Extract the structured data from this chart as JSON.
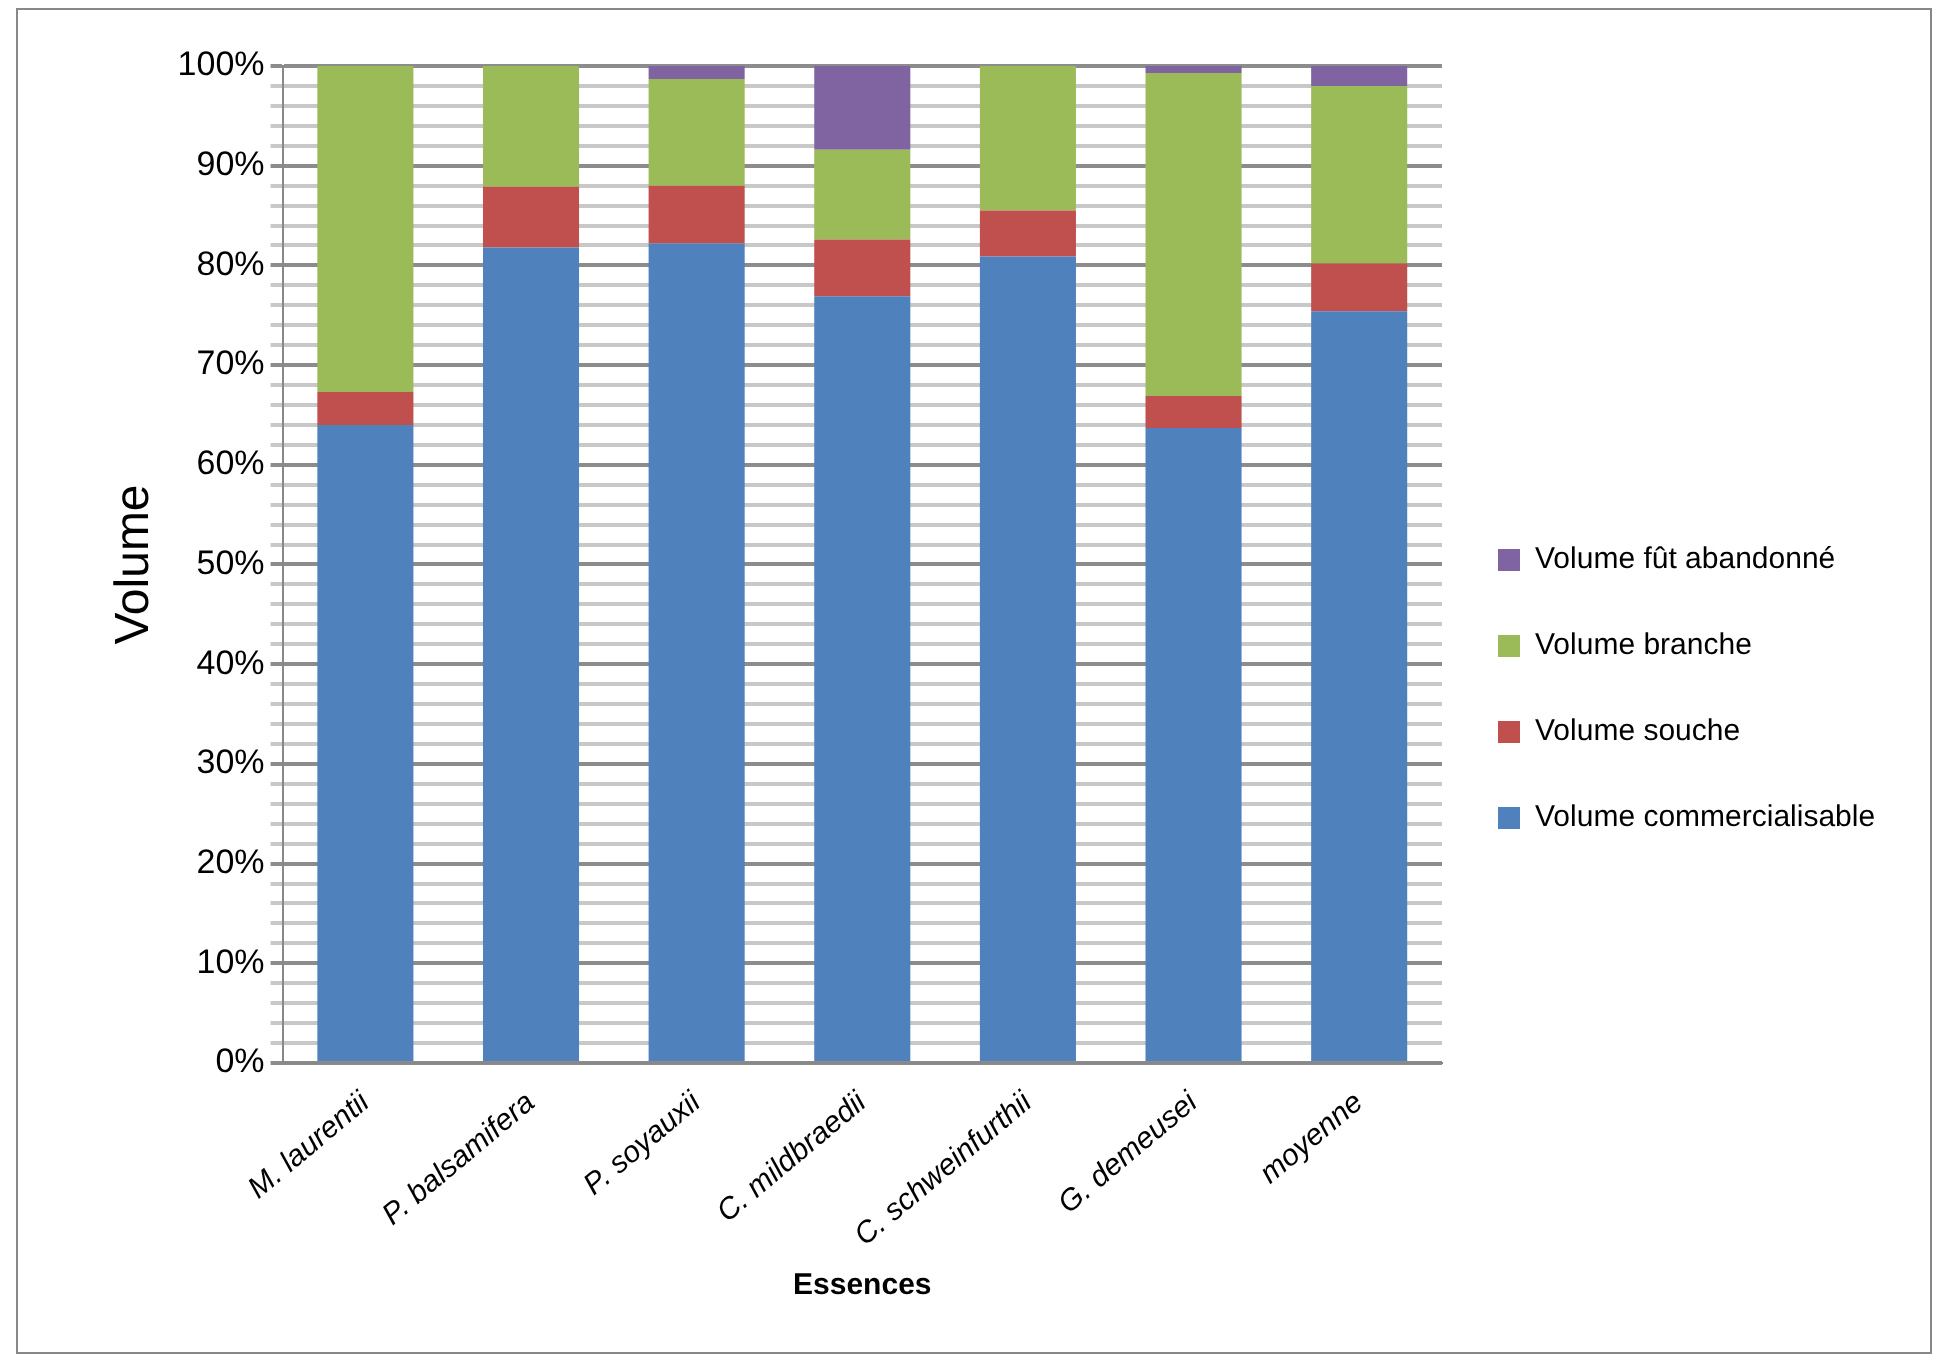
{
  "chart_data": {
    "type": "bar",
    "stacked": true,
    "xlabel": "Essences",
    "ylabel": "Volume",
    "categories": [
      "M. laurentii",
      "P. balsamifera",
      "P. soyauxii",
      "C. mildbraedii",
      "C. schweinfurthii",
      "G. demeusei",
      "moyenne"
    ],
    "series": [
      {
        "name": "Volume commercialisable",
        "color": "#4f81bd",
        "values": [
          64.0,
          81.8,
          82.2,
          76.9,
          80.9,
          63.7,
          75.4
        ]
      },
      {
        "name": "Volume souche",
        "color": "#c0504d",
        "values": [
          3.3,
          6.1,
          5.8,
          5.7,
          4.6,
          3.2,
          4.8
        ]
      },
      {
        "name": "Volume branche",
        "color": "#9bbb59",
        "values": [
          32.7,
          12.1,
          10.7,
          9.0,
          14.5,
          32.4,
          17.8
        ]
      },
      {
        "name": "Volume fût abandonné",
        "color": "#8064a2",
        "values": [
          0,
          0,
          1.3,
          8.4,
          0,
          0.7,
          2.0
        ]
      }
    ],
    "ylim": [
      0,
      100
    ],
    "yticks": [
      {
        "value": 0,
        "label": "0%"
      },
      {
        "value": 2,
        "label": null
      },
      {
        "value": 4,
        "label": null
      },
      {
        "value": 6,
        "label": null
      },
      {
        "value": 8,
        "label": null
      },
      {
        "value": 10,
        "label": "10%"
      },
      {
        "value": 12,
        "label": null
      },
      {
        "value": 14,
        "label": null
      },
      {
        "value": 16,
        "label": null
      },
      {
        "value": 18,
        "label": null
      },
      {
        "value": 20,
        "label": "20%"
      },
      {
        "value": 22,
        "label": null
      },
      {
        "value": 24,
        "label": null
      },
      {
        "value": 26,
        "label": null
      },
      {
        "value": 28,
        "label": null
      },
      {
        "value": 30,
        "label": "30%"
      },
      {
        "value": 32,
        "label": null
      },
      {
        "value": 34,
        "label": null
      },
      {
        "value": 36,
        "label": null
      },
      {
        "value": 38,
        "label": null
      },
      {
        "value": 40,
        "label": "40%"
      },
      {
        "value": 42,
        "label": null
      },
      {
        "value": 44,
        "label": null
      },
      {
        "value": 46,
        "label": null
      },
      {
        "value": 48,
        "label": null
      },
      {
        "value": 50,
        "label": "50%"
      },
      {
        "value": 52,
        "label": null
      },
      {
        "value": 54,
        "label": null
      },
      {
        "value": 56,
        "label": null
      },
      {
        "value": 58,
        "label": null
      },
      {
        "value": 60,
        "label": "60%"
      },
      {
        "value": 62,
        "label": null
      },
      {
        "value": 64,
        "label": null
      },
      {
        "value": 66,
        "label": null
      },
      {
        "value": 68,
        "label": null
      },
      {
        "value": 70,
        "label": "70%"
      },
      {
        "value": 72,
        "label": null
      },
      {
        "value": 74,
        "label": null
      },
      {
        "value": 76,
        "label": null
      },
      {
        "value": 78,
        "label": null
      },
      {
        "value": 80,
        "label": "80%"
      },
      {
        "value": 82,
        "label": null
      },
      {
        "value": 84,
        "label": null
      },
      {
        "value": 86,
        "label": null
      },
      {
        "value": 88,
        "label": null
      },
      {
        "value": 90,
        "label": "90%"
      },
      {
        "value": 92,
        "label": null
      },
      {
        "value": 94,
        "label": null
      },
      {
        "value": 96,
        "label": null
      },
      {
        "value": 98,
        "label": null
      },
      {
        "value": 100,
        "label": "100%"
      }
    ],
    "grid": "y",
    "legend": "right"
  }
}
